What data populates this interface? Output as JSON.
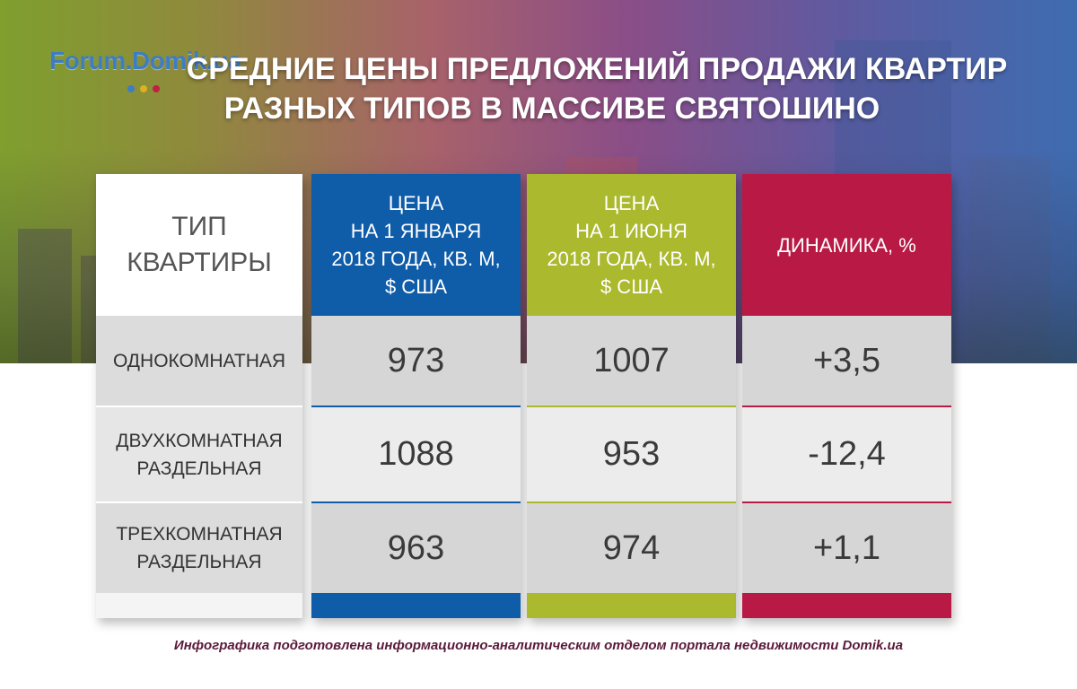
{
  "logo": {
    "text": "Forum.Domik.ua"
  },
  "title": {
    "line1": "СРЕДНИЕ ЦЕНЫ ПРЕДЛОЖЕНИЙ ПРОДАЖИ КВАРТИР",
    "line2": "РАЗНЫХ ТИПОВ В МАССИВЕ СВЯТОШИНО"
  },
  "colors": {
    "blue": "#0f5ca9",
    "green": "#aab92d",
    "red": "#b81a45"
  },
  "chart_data": {
    "type": "table",
    "title": "СРЕДНИЕ ЦЕНЫ ПРЕДЛОЖЕНИЙ ПРОДАЖИ КВАРТИР РАЗНЫХ ТИПОВ В МАССИВЕ СВЯТОШИНО",
    "columns": [
      "ТИП КВАРТИРЫ",
      "ЦЕНА НА 1 ЯНВАРЯ 2018 ГОДА, КВ. М, $ США",
      "ЦЕНА НА 1 ИЮНЯ 2018 ГОДА, КВ. М, $ США",
      "ДИНАМИКА, %"
    ],
    "rows": [
      {
        "type": "ОДНОКОМНАТНАЯ",
        "jan": "973",
        "jun": "1007",
        "dyn": "+3,5"
      },
      {
        "type": "ДВУХКОМНАТНАЯ РАЗДЕЛЬНАЯ",
        "jan": "1088",
        "jun": "953",
        "dyn": "-12,4"
      },
      {
        "type": "ТРЕХКОМНАТНАЯ РАЗДЕЛЬНАЯ",
        "jan": "963",
        "jun": "974",
        "dyn": "+1,1"
      }
    ]
  },
  "headers": {
    "type": [
      "ТИП",
      "КВАРТИРЫ"
    ],
    "jan": [
      "ЦЕНА",
      "НА 1 ЯНВАРЯ",
      "2018 ГОДА, КВ. М,",
      "$ США"
    ],
    "jun": [
      "ЦЕНА",
      "НА 1 ИЮНЯ",
      "2018 ГОДА, КВ. М,",
      "$ США"
    ],
    "dyn": [
      "ДИНАМИКА, %"
    ]
  },
  "row_labels": [
    [
      "ОДНОКОМНАТНАЯ"
    ],
    [
      "ДВУХКОМНАТНАЯ",
      "РАЗДЕЛЬНАЯ"
    ],
    [
      "ТРЕХКОМНАТНАЯ",
      "РАЗДЕЛЬНАЯ"
    ]
  ],
  "footer": "Инфографика подготовлена информационно-аналитическим отделом портала недвижимости Domik.ua"
}
